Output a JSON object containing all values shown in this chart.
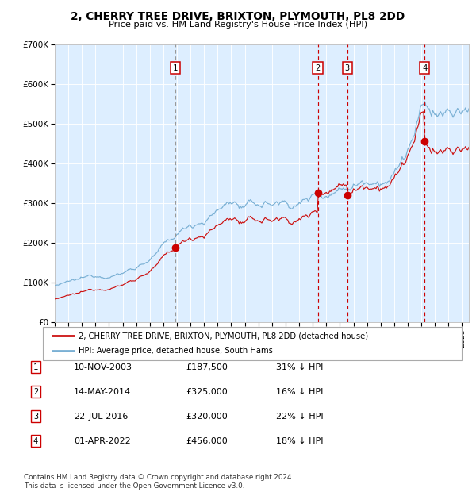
{
  "title_line1": "2, CHERRY TREE DRIVE, BRIXTON, PLYMOUTH, PL8 2DD",
  "title_line2": "Price paid vs. HM Land Registry's House Price Index (HPI)",
  "x_start": 1995.0,
  "x_end": 2025.5,
  "y_min": 0,
  "y_max": 700000,
  "y_ticks": [
    0,
    100000,
    200000,
    300000,
    400000,
    500000,
    600000,
    700000
  ],
  "y_tick_labels": [
    "£0",
    "£100K",
    "£200K",
    "£300K",
    "£400K",
    "£500K",
    "£600K",
    "£700K"
  ],
  "x_tick_years": [
    1995,
    1996,
    1997,
    1998,
    1999,
    2000,
    2001,
    2002,
    2003,
    2004,
    2005,
    2006,
    2007,
    2008,
    2009,
    2010,
    2011,
    2012,
    2013,
    2014,
    2015,
    2016,
    2017,
    2018,
    2019,
    2020,
    2021,
    2022,
    2023,
    2024,
    2025
  ],
  "sale_dates": [
    2003.863,
    2014.37,
    2016.554,
    2022.247
  ],
  "sale_prices": [
    187500,
    325000,
    320000,
    456000
  ],
  "sale_labels": [
    "1",
    "2",
    "3",
    "4"
  ],
  "vline_color_1": "#999999",
  "vline_color_234": "#cc0000",
  "red_line_color": "#cc1111",
  "blue_line_color": "#7ab0d4",
  "plot_bg": "#ddeeff",
  "legend_items": [
    "2, CHERRY TREE DRIVE, BRIXTON, PLYMOUTH, PL8 2DD (detached house)",
    "HPI: Average price, detached house, South Hams"
  ],
  "table_data": [
    [
      "1",
      "10-NOV-2003",
      "£187,500",
      "31% ↓ HPI"
    ],
    [
      "2",
      "14-MAY-2014",
      "£325,000",
      "16% ↓ HPI"
    ],
    [
      "3",
      "22-JUL-2016",
      "£320,000",
      "22% ↓ HPI"
    ],
    [
      "4",
      "01-APR-2022",
      "£456,000",
      "18% ↓ HPI"
    ]
  ],
  "footer": "Contains HM Land Registry data © Crown copyright and database right 2024.\nThis data is licensed under the Open Government Licence v3.0."
}
